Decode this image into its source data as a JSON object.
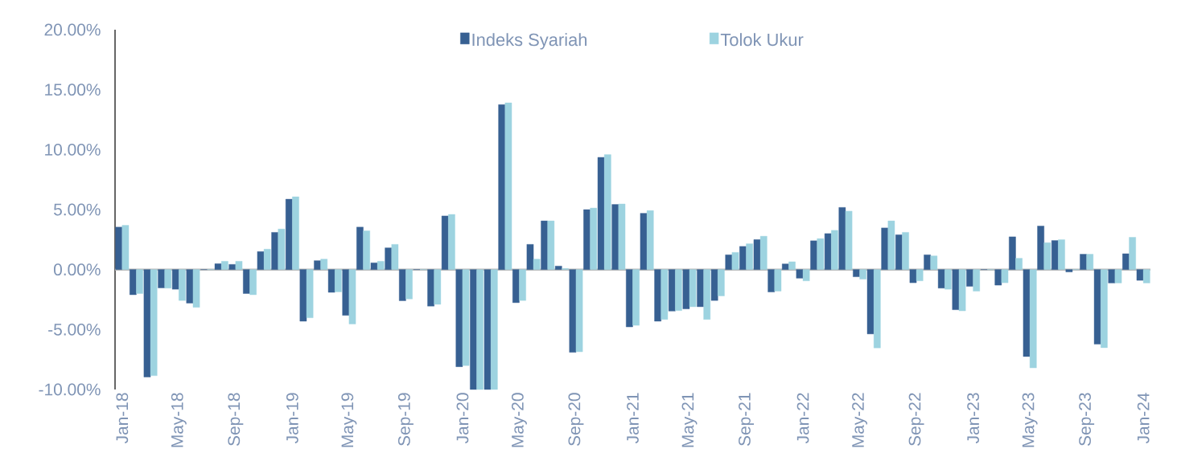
{
  "chart_data": {
    "type": "bar",
    "categories": [
      "Jan-18",
      null,
      null,
      null,
      "May-18",
      null,
      null,
      null,
      "Sep-18",
      null,
      null,
      null,
      "Jan-19",
      null,
      null,
      null,
      "May-19",
      null,
      null,
      null,
      "Sep-19",
      null,
      null,
      null,
      "Jan-20",
      null,
      null,
      null,
      "May-20",
      null,
      null,
      null,
      "Sep-20",
      null,
      null,
      null,
      "Jan-21",
      null,
      null,
      null,
      "May-21",
      null,
      null,
      null,
      "Sep-21",
      null,
      null,
      null,
      "Jan-22",
      null,
      null,
      null,
      "May-22",
      null,
      null,
      null,
      "Sep-22",
      null,
      null,
      null,
      "Jan-23",
      null,
      null,
      null,
      "May-23",
      null,
      null,
      null,
      "Sep-23",
      null,
      null,
      null,
      "Jan-24"
    ],
    "series": [
      {
        "name": "Indeks Syariah",
        "color": "#376092",
        "values": [
          3.54,
          -2.1,
          -8.96,
          -1.53,
          -1.64,
          -2.8,
          0,
          0.49,
          0.43,
          -2.0,
          1.5,
          3.1,
          5.87,
          -4.31,
          0.74,
          -1.9,
          -3.82,
          3.54,
          0.56,
          1.81,
          -2.6,
          0,
          -3.05,
          4.47,
          -8.1,
          -10,
          -10,
          13.75,
          -2.76,
          2.1,
          4.06,
          0.29,
          -6.9,
          5.0,
          9.36,
          5.43,
          -4.78,
          4.69,
          -4.31,
          -3.46,
          -3.28,
          -3.1,
          -2.58,
          1.23,
          1.93,
          2.5,
          -1.87,
          0.47,
          -0.72,
          2.4,
          3.0,
          5.18,
          -0.6,
          -5.37,
          3.47,
          2.9,
          -1.1,
          1.23,
          -1.55,
          -3.35,
          -1.4,
          0,
          -1.3,
          2.73,
          -7.25,
          3.63,
          2.42,
          -0.2,
          1.28,
          -6.22,
          -1.12,
          1.32,
          -0.9
        ]
      },
      {
        "name": "Tolok Ukur",
        "color": "#9dd3e0",
        "values": [
          3.69,
          -2.0,
          -8.85,
          -1.55,
          -2.58,
          -3.15,
          0,
          0.69,
          0.69,
          -2.1,
          1.7,
          3.38,
          6.07,
          -4.02,
          0.87,
          -1.86,
          -4.54,
          3.23,
          0.69,
          2.1,
          -2.45,
          0,
          -2.9,
          4.6,
          -8.0,
          -10,
          -10,
          13.9,
          -2.58,
          0.87,
          4.06,
          0.09,
          -6.86,
          5.13,
          9.58,
          5.47,
          -4.65,
          4.92,
          -4.16,
          -3.42,
          -3.1,
          -4.16,
          -2.2,
          1.43,
          2.15,
          2.78,
          -1.8,
          0.65,
          -0.94,
          2.58,
          3.27,
          4.87,
          -0.8,
          -6.53,
          4.06,
          3.1,
          -0.94,
          1.14,
          -1.64,
          -3.44,
          -1.8,
          0,
          -1.1,
          0.94,
          -8.2,
          2.24,
          2.49,
          0,
          1.28,
          -6.51,
          -1.12,
          2.69,
          -1.12
        ]
      }
    ],
    "ylim": [
      -10,
      20
    ],
    "yticks": [
      {
        "value": -10,
        "label": "-10.00%"
      },
      {
        "value": -5,
        "label": "-5.00%"
      },
      {
        "value": 0,
        "label": "0.00%"
      },
      {
        "value": 5,
        "label": "5.00%"
      },
      {
        "value": 10,
        "label": "10.00%"
      },
      {
        "value": 15,
        "label": "15.00%"
      },
      {
        "value": 20,
        "label": "20.00%"
      }
    ],
    "legend": "top"
  }
}
